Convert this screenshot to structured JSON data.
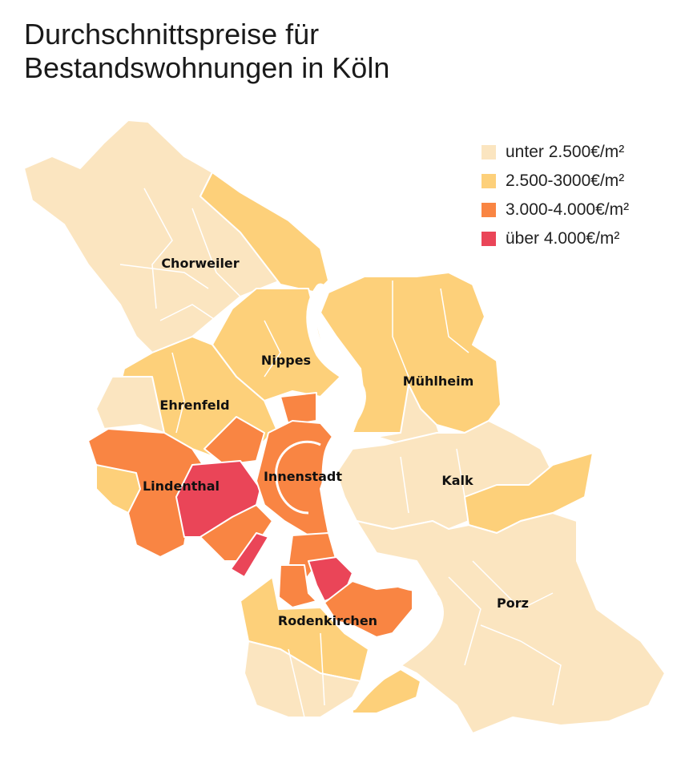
{
  "title": {
    "line1": "Durchschnittspreise für",
    "line2": "Bestandswohnungen in Köln"
  },
  "legend": [
    {
      "label": "unter 2.500€/m²",
      "color": "#fbe5c0"
    },
    {
      "label": "2.500-3000€/m²",
      "color": "#fdd07a"
    },
    {
      "label": "3.000-4.000€/m²",
      "color": "#f98543"
    },
    {
      "label": "über 4.000€/m²",
      "color": "#ea4558"
    }
  ],
  "districts": {
    "chorweiler": "Chorweiler",
    "nippes": "Nippes",
    "muehlheim": "Mühlheim",
    "ehrenfeld": "Ehrenfeld",
    "innenstadt": "Innenstadt",
    "kalk": "Kalk",
    "lindenthal": "Lindenthal",
    "porz": "Porz",
    "rodenkirchen": "Rodenkirchen"
  }
}
